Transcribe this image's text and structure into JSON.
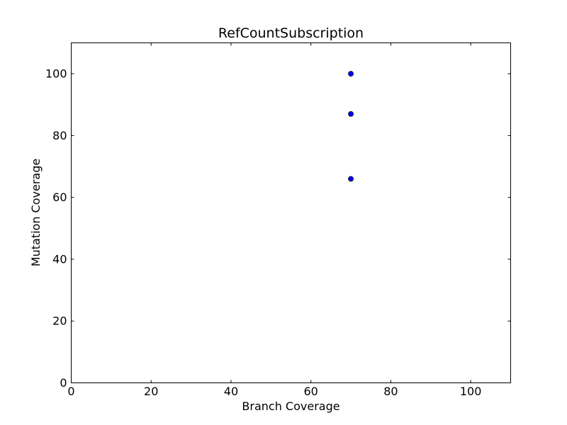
{
  "chart_data": {
    "type": "scatter",
    "title": "RefCountSubscription",
    "xlabel": "Branch Coverage",
    "ylabel": "Mutation Coverage",
    "xlim": [
      0,
      110
    ],
    "ylim": [
      0,
      110
    ],
    "xticks": [
      0,
      20,
      40,
      60,
      80,
      100
    ],
    "yticks": [
      0,
      20,
      40,
      60,
      80,
      100
    ],
    "grid": false,
    "series": [
      {
        "color": "#0000ff",
        "points": [
          {
            "x": 70,
            "y": 100
          },
          {
            "x": 70,
            "y": 87
          },
          {
            "x": 70,
            "y": 66
          }
        ]
      }
    ]
  }
}
